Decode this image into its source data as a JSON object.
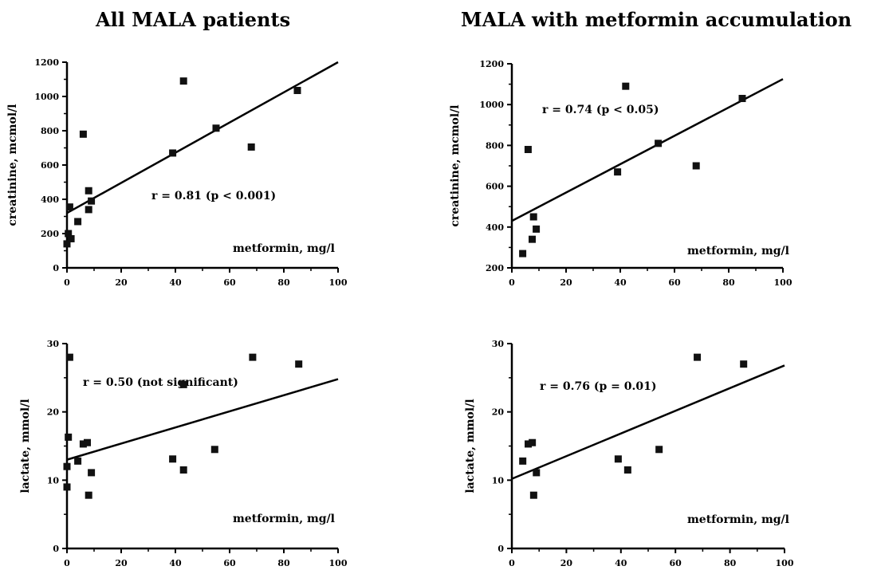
{
  "headings": {
    "left": "All MALA patients",
    "right": "MALA with metformin accumulation"
  },
  "chart_data": [
    {
      "type": "scatter",
      "title": "All MALA patients",
      "xlabel": "metformin, mg/l",
      "ylabel": "creatinine, mcmol/l",
      "xlim": [
        0,
        100
      ],
      "ylim": [
        0,
        1200
      ],
      "xticks": [
        0,
        20,
        40,
        60,
        80,
        100
      ],
      "yticks": [
        0,
        200,
        400,
        600,
        800,
        1000,
        1200
      ],
      "annotation": "r = 0.81 (p < 0.001)",
      "points": [
        {
          "x": 0,
          "y": 140
        },
        {
          "x": 0.5,
          "y": 200
        },
        {
          "x": 1,
          "y": 355
        },
        {
          "x": 1.5,
          "y": 170
        },
        {
          "x": 4,
          "y": 270
        },
        {
          "x": 6,
          "y": 780
        },
        {
          "x": 8,
          "y": 340
        },
        {
          "x": 8,
          "y": 450
        },
        {
          "x": 9,
          "y": 390
        },
        {
          "x": 39,
          "y": 670
        },
        {
          "x": 43,
          "y": 1090
        },
        {
          "x": 55,
          "y": 815
        },
        {
          "x": 68,
          "y": 705
        },
        {
          "x": 85,
          "y": 1035
        }
      ],
      "trendline": {
        "x": [
          0,
          100
        ],
        "y": [
          320,
          1200
        ]
      }
    },
    {
      "type": "scatter",
      "title": "MALA with metformin accumulation",
      "xlabel": "metformin, mg/l",
      "ylabel": "creatinine, mcmol/l",
      "xlim": [
        0,
        100
      ],
      "ylim": [
        200,
        1200
      ],
      "xticks": [
        0,
        20,
        40,
        60,
        80,
        100
      ],
      "yticks": [
        200,
        400,
        600,
        800,
        1000,
        1200
      ],
      "annotation": "r = 0.74 (p < 0.05)",
      "points": [
        {
          "x": 4,
          "y": 270
        },
        {
          "x": 6,
          "y": 780
        },
        {
          "x": 7.5,
          "y": 340
        },
        {
          "x": 8,
          "y": 450
        },
        {
          "x": 9,
          "y": 390
        },
        {
          "x": 39,
          "y": 670
        },
        {
          "x": 42,
          "y": 1090
        },
        {
          "x": 54,
          "y": 810
        },
        {
          "x": 68,
          "y": 700
        },
        {
          "x": 85,
          "y": 1030
        }
      ],
      "trendline": {
        "x": [
          0,
          100
        ],
        "y": [
          430,
          1125
        ]
      }
    },
    {
      "type": "scatter",
      "xlabel": "metformin, mg/l",
      "ylabel": "lactate, mmol/l",
      "xlim": [
        0,
        100
      ],
      "ylim": [
        0,
        30
      ],
      "xticks": [
        0,
        20,
        40,
        60,
        80,
        100
      ],
      "yticks": [
        0,
        10,
        20,
        30
      ],
      "annotation": "r = 0.50 (not significant)",
      "points": [
        {
          "x": 0,
          "y": 9
        },
        {
          "x": 0,
          "y": 12
        },
        {
          "x": 0.5,
          "y": 16.3
        },
        {
          "x": 1,
          "y": 28
        },
        {
          "x": 4,
          "y": 12.8
        },
        {
          "x": 6,
          "y": 15.3
        },
        {
          "x": 7.5,
          "y": 15.5
        },
        {
          "x": 8,
          "y": 7.8
        },
        {
          "x": 9,
          "y": 11.1
        },
        {
          "x": 39,
          "y": 13.1
        },
        {
          "x": 43,
          "y": 11.5
        },
        {
          "x": 43,
          "y": 24
        },
        {
          "x": 54.5,
          "y": 14.5
        },
        {
          "x": 68.5,
          "y": 28
        },
        {
          "x": 85.5,
          "y": 27
        }
      ],
      "trendline": {
        "x": [
          0,
          100
        ],
        "y": [
          13,
          24.8
        ]
      }
    },
    {
      "type": "scatter",
      "xlabel": "metformin, mg/l",
      "ylabel": "lactate, mmol/l",
      "xlim": [
        0,
        100
      ],
      "ylim": [
        0,
        30
      ],
      "xticks": [
        0,
        20,
        40,
        60,
        80,
        100
      ],
      "yticks": [
        0,
        10,
        20,
        30
      ],
      "annotation": "r = 0.76 (p = 0.01)",
      "points": [
        {
          "x": 4,
          "y": 12.8
        },
        {
          "x": 6,
          "y": 15.3
        },
        {
          "x": 7.5,
          "y": 15.5
        },
        {
          "x": 8,
          "y": 7.8
        },
        {
          "x": 9,
          "y": 11.1
        },
        {
          "x": 39,
          "y": 13.1
        },
        {
          "x": 42.5,
          "y": 11.5
        },
        {
          "x": 54,
          "y": 14.5
        },
        {
          "x": 68,
          "y": 28
        },
        {
          "x": 85,
          "y": 27
        }
      ],
      "trendline": {
        "x": [
          0,
          100
        ],
        "y": [
          10.2,
          26.8
        ]
      }
    }
  ]
}
